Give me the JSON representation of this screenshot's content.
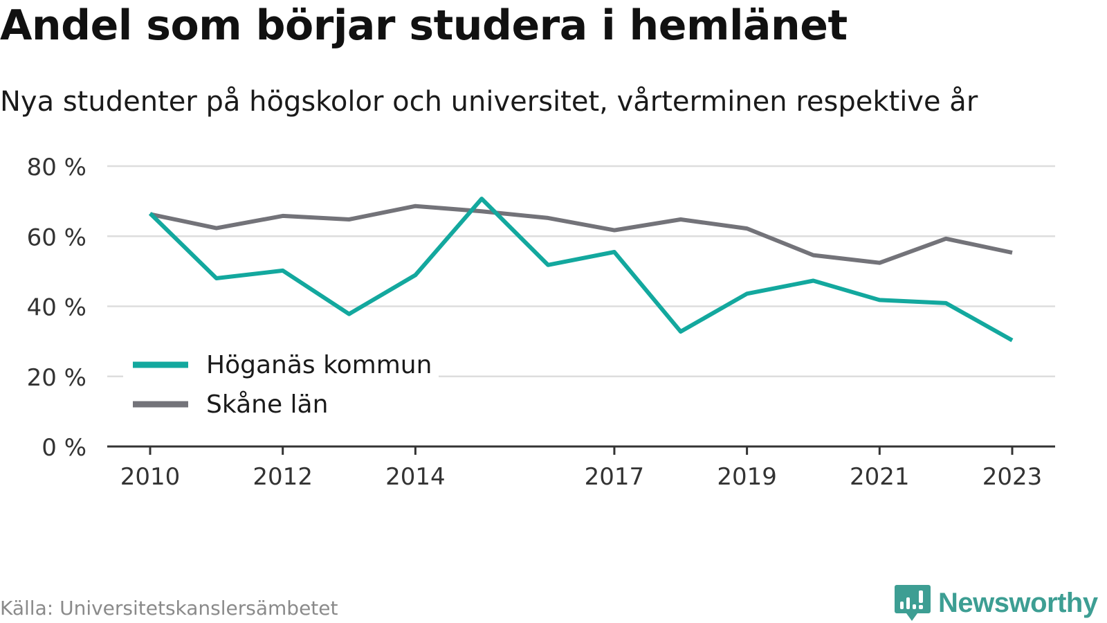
{
  "title": "Andel som börjar studera i hemlänet",
  "subtitle": "Nya studenter på högskolor och universitet, vårterminen respektive år",
  "source": "Källa: Universitetskanslersämbetet",
  "brand": "Newsworthy",
  "colors": {
    "series1": "#13a89e",
    "series2": "#737379",
    "grid": "#dddddd",
    "axis": "#333333",
    "brand": "#3d9e93"
  },
  "chart_data": {
    "type": "line",
    "title": "Andel som börjar studera i hemlänet",
    "subtitle": "Nya studenter på högskolor och universitet, vårterminen respektive år",
    "x": [
      2010,
      2011,
      2012,
      2013,
      2014,
      2015,
      2016,
      2017,
      2018,
      2019,
      2020,
      2021,
      2022,
      2023
    ],
    "x_tick_labels": [
      "2010",
      "2012",
      "2014",
      "2017",
      "2019",
      "2021",
      "2023"
    ],
    "y_tick_labels": [
      "0 %",
      "20 %",
      "40 %",
      "60 %",
      "80 %"
    ],
    "ylim": [
      0,
      80
    ],
    "y_ticks": [
      0,
      20,
      40,
      60,
      80
    ],
    "grid": true,
    "legend_position": "bottom-left",
    "series": [
      {
        "name": "Höganäs kommun",
        "values": [
          66.5,
          48,
          50.2,
          37.8,
          48.9,
          70.7,
          51.8,
          55.5,
          32.8,
          43.6,
          47.3,
          41.8,
          40.9,
          30.3
        ]
      },
      {
        "name": "Skåne län",
        "values": [
          66.3,
          62.3,
          65.8,
          64.8,
          68.6,
          67.1,
          65.2,
          61.7,
          64.8,
          62.2,
          54.6,
          52.4,
          59.3,
          55.3
        ]
      }
    ]
  }
}
